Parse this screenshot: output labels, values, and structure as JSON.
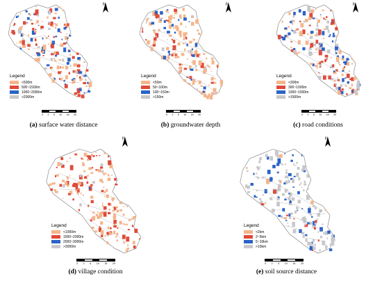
{
  "panels": [
    {
      "id": "a",
      "caption_letter": "(a)",
      "caption_text": "surface water distance",
      "legend_title": "Legend",
      "legend": [
        {
          "label": "<500m",
          "color": "#f5b58a"
        },
        {
          "label": "500~1500m",
          "color": "#e04a3a"
        },
        {
          "label": "1000~2000m",
          "color": "#2b63c8"
        },
        {
          "label": ">2000m",
          "color": "#c8c8cc"
        }
      ],
      "weights": [
        0.35,
        0.3,
        0.25,
        0.1
      ]
    },
    {
      "id": "b",
      "caption_letter": "(b)",
      "caption_text": "groundwater depth",
      "legend_title": "Legend",
      "legend": [
        {
          "label": "<50m",
          "color": "#f5b58a"
        },
        {
          "label": "50~100m",
          "color": "#e04a3a"
        },
        {
          "label": "100~150m",
          "color": "#2b63c8"
        },
        {
          "label": ">150m",
          "color": "#c8c8cc"
        }
      ],
      "weights": [
        0.6,
        0.2,
        0.12,
        0.08
      ]
    },
    {
      "id": "c",
      "caption_letter": "(c)",
      "caption_text": "road conditions",
      "legend_title": "Legend",
      "legend": [
        {
          "label": "<300m",
          "color": "#f5b58a"
        },
        {
          "label": "300~1000m",
          "color": "#e04a3a"
        },
        {
          "label": "1000~1500m",
          "color": "#2b63c8"
        },
        {
          "label": ">1500m",
          "color": "#c8c8cc"
        }
      ],
      "weights": [
        0.3,
        0.25,
        0.2,
        0.25
      ]
    },
    {
      "id": "d",
      "caption_letter": "(d)",
      "caption_text": "village condition",
      "legend_title": "Legend",
      "legend": [
        {
          "label": "<1000m",
          "color": "#f5b58a"
        },
        {
          "label": "1000~2000m",
          "color": "#e04a3a"
        },
        {
          "label": "2000~3000m",
          "color": "#2b63c8"
        },
        {
          "label": ">3000m",
          "color": "#c8c8cc"
        }
      ],
      "weights": [
        0.55,
        0.4,
        0.02,
        0.03
      ]
    },
    {
      "id": "e",
      "caption_letter": "(e)",
      "caption_text": "soil source distance",
      "legend_title": "Legend",
      "legend": [
        {
          "label": "<2km",
          "color": "#f5b58a"
        },
        {
          "label": "2~5km",
          "color": "#e04a3a"
        },
        {
          "label": "5~10km",
          "color": "#2b63c8"
        },
        {
          "label": ">10km",
          "color": "#c8c8cc"
        }
      ],
      "weights": [
        0.05,
        0.05,
        0.3,
        0.6
      ]
    }
  ],
  "north_label": "N",
  "scale_ticks": [
    "0",
    "2",
    "5",
    "10",
    "15",
    "20"
  ],
  "scale_unit": "km"
}
